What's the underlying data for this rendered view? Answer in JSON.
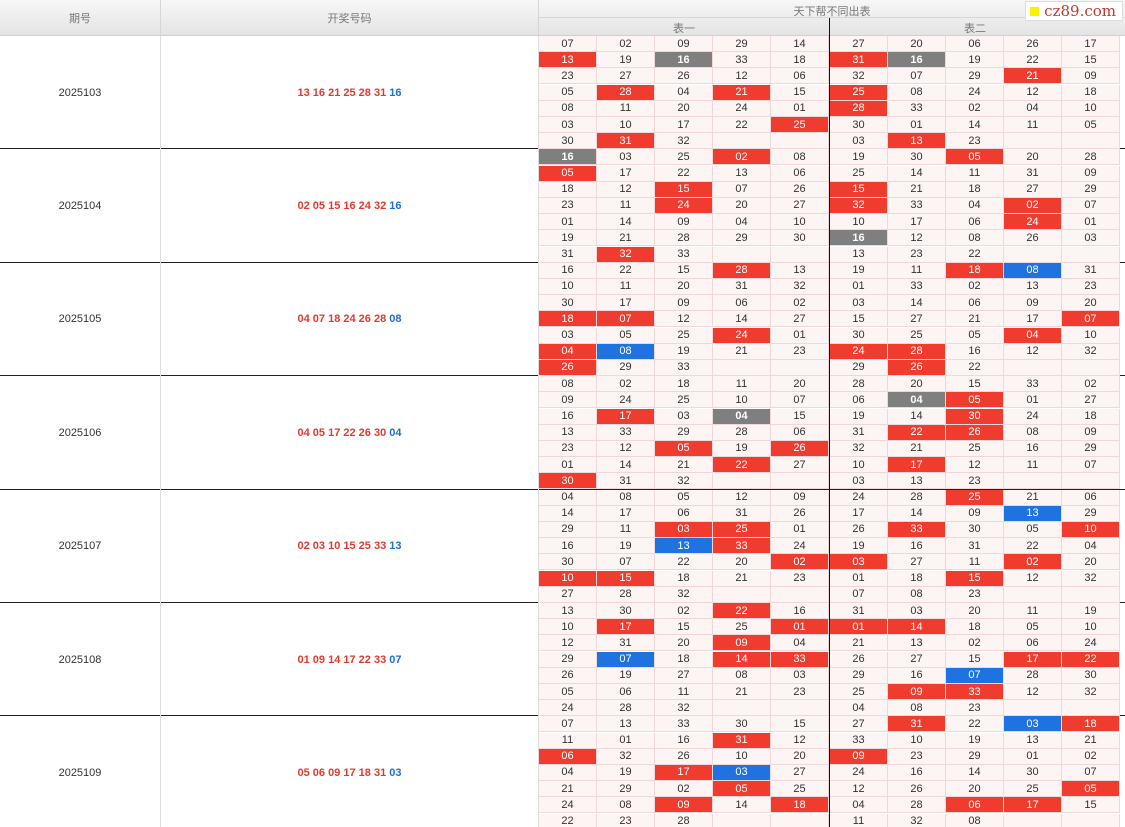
{
  "header": {
    "col_period": "期号",
    "col_draw": "开奖号码",
    "col_table_group": "天下帮不同出表",
    "table1": "表一",
    "table2": "表二",
    "logo_text": "cz89.com"
  },
  "rows": [
    {
      "period": "2025103",
      "red": "13 16 21 25 28 31",
      "blue": "16",
      "table1": [
        [
          "07",
          "02",
          "09",
          "29",
          "14"
        ],
        [
          "13",
          "19",
          "16",
          "33",
          "18"
        ],
        [
          "23",
          "27",
          "26",
          "12",
          "06"
        ],
        [
          "05",
          "28",
          "04",
          "21",
          "15"
        ],
        [
          "08",
          "11",
          "20",
          "24",
          "01"
        ],
        [
          "03",
          "10",
          "17",
          "22",
          "25"
        ],
        [
          "30",
          "31",
          "32",
          "",
          ""
        ]
      ],
      "table2": [
        [
          "27",
          "20",
          "06",
          "26",
          "17"
        ],
        [
          "31",
          "16",
          "19",
          "22",
          "15"
        ],
        [
          "32",
          "07",
          "29",
          "21",
          "09"
        ],
        [
          "25",
          "08",
          "24",
          "12",
          "18"
        ],
        [
          "28",
          "33",
          "02",
          "04",
          "10"
        ],
        [
          "30",
          "01",
          "14",
          "11",
          "05"
        ],
        [
          "03",
          "13",
          "23",
          "",
          ""
        ]
      ]
    },
    {
      "period": "2025104",
      "red": "02 05 15 16 24 32",
      "blue": "16",
      "table1": [
        [
          "16",
          "03",
          "25",
          "02",
          "08"
        ],
        [
          "05",
          "17",
          "22",
          "13",
          "06"
        ],
        [
          "18",
          "12",
          "15",
          "07",
          "26"
        ],
        [
          "23",
          "11",
          "24",
          "20",
          "27"
        ],
        [
          "01",
          "14",
          "09",
          "04",
          "10"
        ],
        [
          "19",
          "21",
          "28",
          "29",
          "30"
        ],
        [
          "31",
          "32",
          "33",
          "",
          ""
        ]
      ],
      "table2": [
        [
          "19",
          "30",
          "05",
          "20",
          "28"
        ],
        [
          "25",
          "14",
          "11",
          "31",
          "09"
        ],
        [
          "15",
          "21",
          "18",
          "27",
          "29"
        ],
        [
          "32",
          "33",
          "04",
          "02",
          "07"
        ],
        [
          "10",
          "17",
          "06",
          "24",
          "01"
        ],
        [
          "16",
          "12",
          "08",
          "26",
          "03"
        ],
        [
          "13",
          "23",
          "22",
          "",
          ""
        ]
      ]
    },
    {
      "period": "2025105",
      "red": "04 07 18 24 26 28",
      "blue": "08",
      "table1": [
        [
          "16",
          "22",
          "15",
          "28",
          "13"
        ],
        [
          "10",
          "11",
          "20",
          "31",
          "32"
        ],
        [
          "30",
          "17",
          "09",
          "06",
          "02"
        ],
        [
          "18",
          "07",
          "12",
          "14",
          "27"
        ],
        [
          "03",
          "05",
          "25",
          "24",
          "01"
        ],
        [
          "04",
          "08",
          "19",
          "21",
          "23"
        ],
        [
          "26",
          "29",
          "33",
          "",
          ""
        ]
      ],
      "table2": [
        [
          "19",
          "11",
          "18",
          "08",
          "31"
        ],
        [
          "01",
          "33",
          "02",
          "13",
          "23"
        ],
        [
          "03",
          "14",
          "06",
          "09",
          "20"
        ],
        [
          "15",
          "27",
          "21",
          "17",
          "07"
        ],
        [
          "30",
          "25",
          "05",
          "04",
          "10"
        ],
        [
          "24",
          "28",
          "16",
          "12",
          "32"
        ],
        [
          "29",
          "26",
          "22",
          "",
          ""
        ]
      ]
    },
    {
      "period": "2025106",
      "red": "04 05 17 22 26 30",
      "blue": "04",
      "table1": [
        [
          "08",
          "02",
          "18",
          "11",
          "20"
        ],
        [
          "09",
          "24",
          "25",
          "10",
          "07"
        ],
        [
          "16",
          "17",
          "03",
          "04",
          "15"
        ],
        [
          "13",
          "33",
          "29",
          "28",
          "06"
        ],
        [
          "23",
          "12",
          "05",
          "19",
          "26"
        ],
        [
          "01",
          "14",
          "21",
          "22",
          "27"
        ],
        [
          "30",
          "31",
          "32",
          "",
          ""
        ]
      ],
      "table2": [
        [
          "28",
          "20",
          "15",
          "33",
          "02"
        ],
        [
          "06",
          "04",
          "05",
          "01",
          "27"
        ],
        [
          "19",
          "14",
          "30",
          "24",
          "18"
        ],
        [
          "31",
          "22",
          "26",
          "08",
          "09"
        ],
        [
          "32",
          "21",
          "25",
          "16",
          "29"
        ],
        [
          "10",
          "17",
          "12",
          "11",
          "07"
        ],
        [
          "03",
          "13",
          "23",
          "",
          ""
        ]
      ]
    },
    {
      "period": "2025107",
      "red": "02 03 10 15 25 33",
      "blue": "13",
      "table1": [
        [
          "04",
          "08",
          "05",
          "12",
          "09"
        ],
        [
          "14",
          "17",
          "06",
          "31",
          "26"
        ],
        [
          "29",
          "11",
          "03",
          "25",
          "01"
        ],
        [
          "16",
          "19",
          "13",
          "33",
          "24"
        ],
        [
          "30",
          "07",
          "22",
          "20",
          "02"
        ],
        [
          "10",
          "15",
          "18",
          "21",
          "23"
        ],
        [
          "27",
          "28",
          "32",
          "",
          ""
        ]
      ],
      "table2": [
        [
          "24",
          "28",
          "25",
          "21",
          "06"
        ],
        [
          "17",
          "14",
          "09",
          "13",
          "29"
        ],
        [
          "26",
          "33",
          "30",
          "05",
          "10"
        ],
        [
          "19",
          "16",
          "31",
          "22",
          "04"
        ],
        [
          "03",
          "27",
          "11",
          "02",
          "20"
        ],
        [
          "01",
          "18",
          "15",
          "12",
          "32"
        ],
        [
          "07",
          "08",
          "23",
          "",
          ""
        ]
      ]
    },
    {
      "period": "2025108",
      "red": "01 09 14 17 22 33",
      "blue": "07",
      "table1": [
        [
          "13",
          "30",
          "02",
          "22",
          "16"
        ],
        [
          "10",
          "17",
          "15",
          "25",
          "01"
        ],
        [
          "12",
          "31",
          "20",
          "09",
          "04"
        ],
        [
          "29",
          "07",
          "18",
          "14",
          "33"
        ],
        [
          "26",
          "19",
          "27",
          "08",
          "03"
        ],
        [
          "05",
          "06",
          "11",
          "21",
          "23"
        ],
        [
          "24",
          "28",
          "32",
          "",
          ""
        ]
      ],
      "table2": [
        [
          "31",
          "03",
          "20",
          "11",
          "19"
        ],
        [
          "01",
          "14",
          "18",
          "05",
          "10"
        ],
        [
          "21",
          "13",
          "02",
          "06",
          "24"
        ],
        [
          "26",
          "27",
          "15",
          "17",
          "22"
        ],
        [
          "29",
          "16",
          "07",
          "28",
          "30"
        ],
        [
          "25",
          "09",
          "33",
          "12",
          "32"
        ],
        [
          "04",
          "08",
          "23",
          "",
          ""
        ]
      ]
    },
    {
      "period": "2025109",
      "red": "05 06 09 17 18 31",
      "blue": "03",
      "table1": [
        [
          "07",
          "13",
          "33",
          "30",
          "15"
        ],
        [
          "11",
          "01",
          "16",
          "31",
          "12"
        ],
        [
          "06",
          "32",
          "26",
          "10",
          "20"
        ],
        [
          "04",
          "19",
          "17",
          "03",
          "27"
        ],
        [
          "21",
          "29",
          "02",
          "05",
          "25"
        ],
        [
          "24",
          "08",
          "09",
          "14",
          "18"
        ],
        [
          "22",
          "23",
          "28",
          "",
          ""
        ]
      ],
      "table2": [
        [
          "27",
          "31",
          "22",
          "03",
          "18"
        ],
        [
          "33",
          "10",
          "19",
          "13",
          "21"
        ],
        [
          "09",
          "23",
          "29",
          "01",
          "02"
        ],
        [
          "24",
          "16",
          "14",
          "30",
          "07"
        ],
        [
          "12",
          "26",
          "20",
          "25",
          "05"
        ],
        [
          "04",
          "28",
          "06",
          "17",
          "15"
        ],
        [
          "11",
          "32",
          "08",
          "",
          ""
        ]
      ]
    }
  ]
}
